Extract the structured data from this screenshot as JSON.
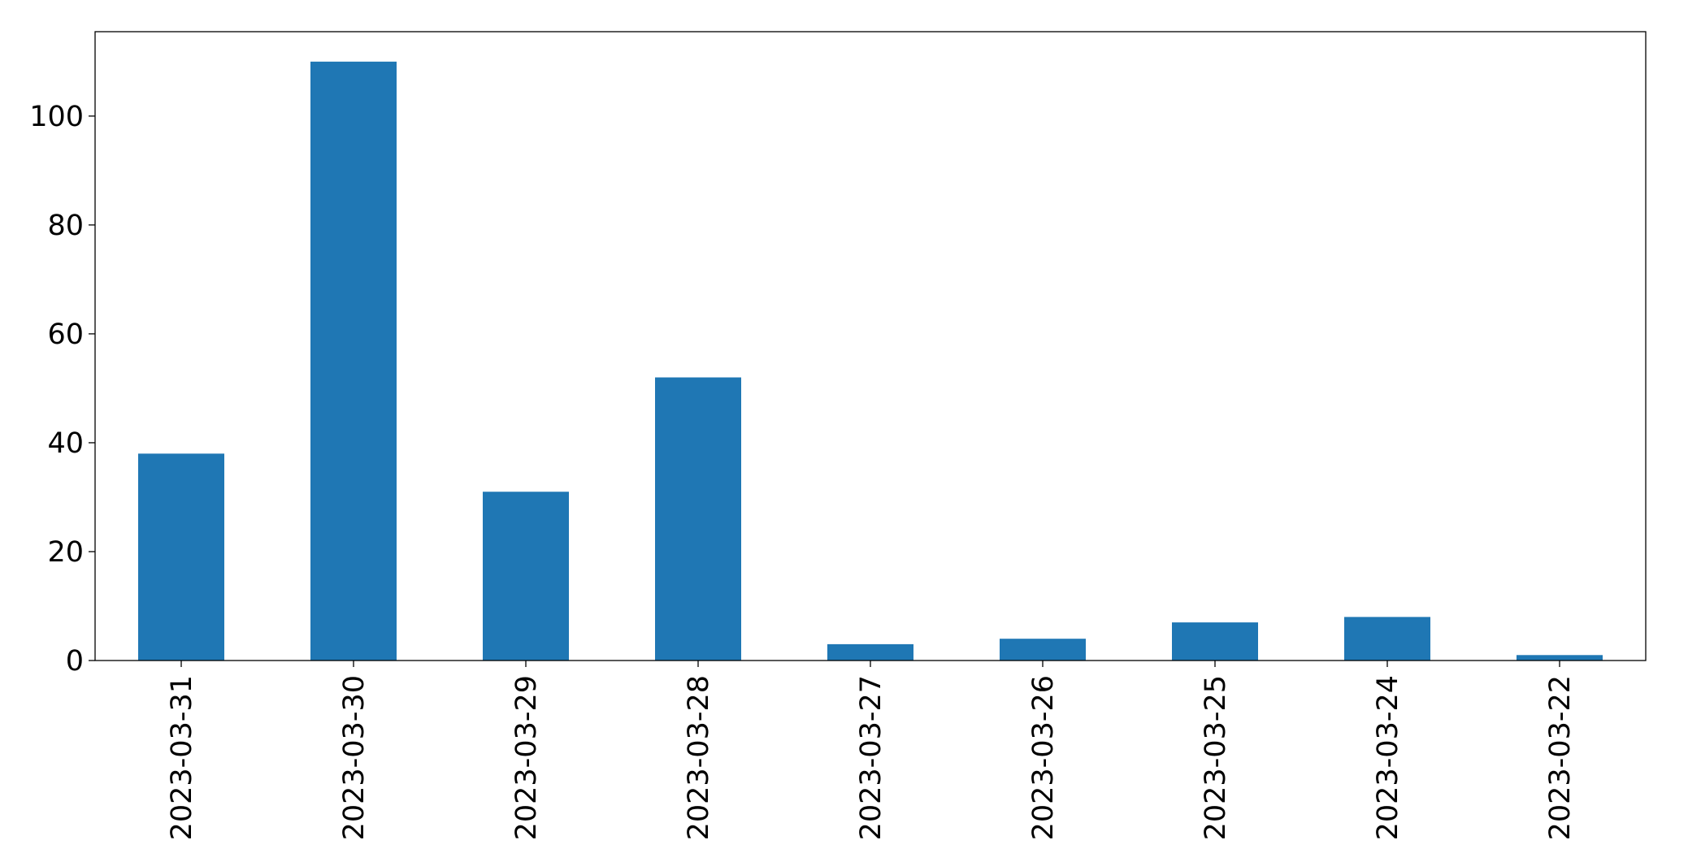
{
  "chart_data": {
    "type": "bar",
    "categories": [
      "2023-03-31",
      "2023-03-30",
      "2023-03-29",
      "2023-03-28",
      "2023-03-27",
      "2023-03-26",
      "2023-03-25",
      "2023-03-24",
      "2023-03-22"
    ],
    "values": [
      38,
      110,
      31,
      52,
      3,
      4,
      7,
      8,
      1
    ],
    "color": "#1f77b4",
    "ylim": [
      0,
      115.5
    ],
    "yticks": [
      0,
      20,
      40,
      60,
      80,
      100
    ],
    "grid": false
  }
}
